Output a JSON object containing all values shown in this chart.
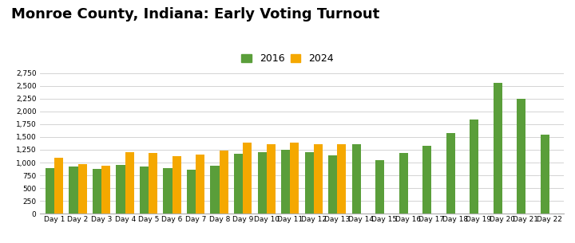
{
  "title": "Monroe County, Indiana: Early Voting Turnout",
  "categories": [
    "Day 1",
    "Day 2",
    "Day 3",
    "Day 4",
    "Day 5",
    "Day 6",
    "Day 7",
    "Day 8",
    "Day 9",
    "Day 10",
    "Day 11",
    "Day 12",
    "Day 13",
    "Day 14",
    "Day 15",
    "Day 16",
    "Day 17",
    "Day 18",
    "Day 19",
    "Day 20",
    "Day 21",
    "Day 22"
  ],
  "values_2016": [
    900,
    920,
    870,
    960,
    920,
    890,
    860,
    940,
    1170,
    1210,
    1250,
    1200,
    1140,
    1360,
    1040,
    1190,
    1320,
    1580,
    1840,
    2550,
    2250,
    1540
  ],
  "values_2024": [
    1095,
    970,
    940,
    1210,
    1180,
    1130,
    1150,
    1230,
    1390,
    1360,
    1390,
    1360,
    1360,
    null,
    null,
    null,
    null,
    null,
    null,
    null,
    null,
    null
  ],
  "color_2016": "#5a9e3a",
  "color_2024": "#f5a800",
  "ylim": [
    0,
    2750
  ],
  "yticks": [
    0,
    250,
    500,
    750,
    1000,
    1250,
    1500,
    1750,
    2000,
    2250,
    2500,
    2750
  ],
  "ytick_labels": [
    "0",
    "250",
    "500",
    "750",
    "1,000",
    "1,250",
    "1,500",
    "1,750",
    "2,000",
    "2,250",
    "2,500",
    "2,750"
  ],
  "title_fontsize": 13,
  "legend_fontsize": 9,
  "tick_fontsize": 6.5,
  "background_color": "#ffffff",
  "bar_width": 0.38
}
